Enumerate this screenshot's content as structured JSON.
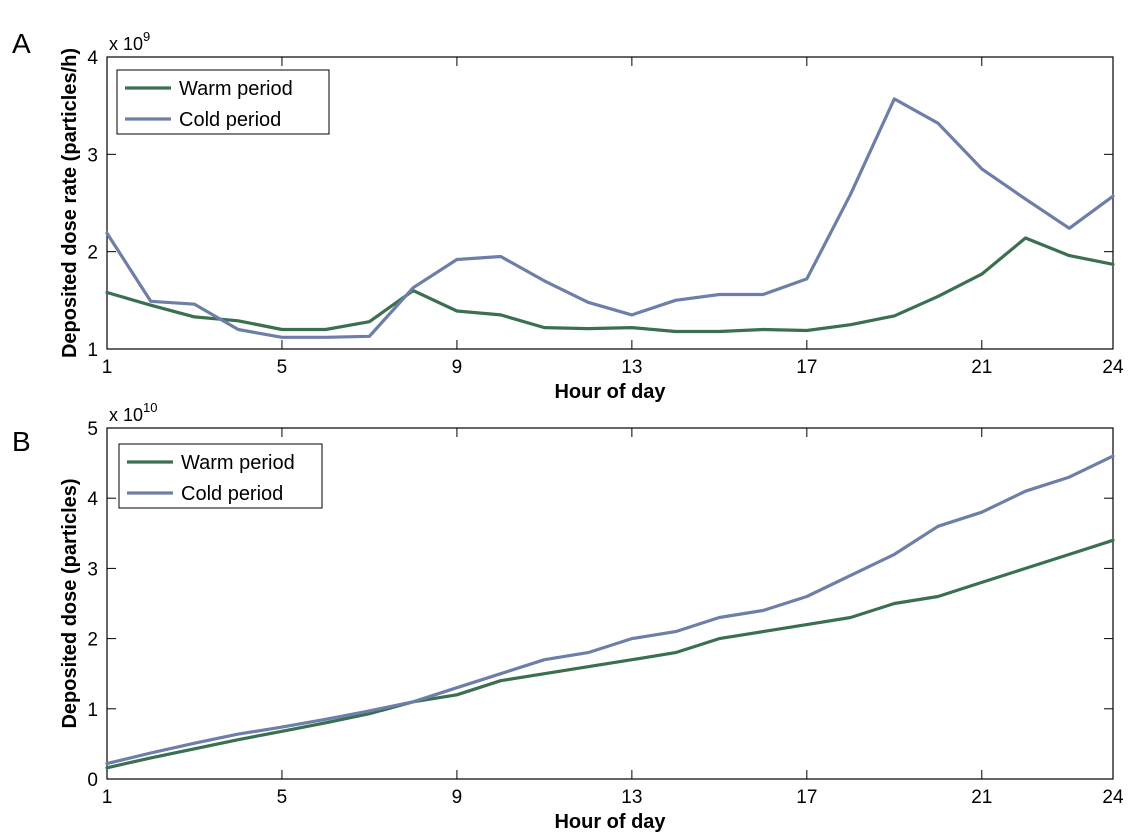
{
  "chart_data": [
    {
      "type": "line",
      "panel_label": "A",
      "exponent_prefix": "x 10",
      "exponent_power": "9",
      "xlabel": "Hour of day",
      "ylabel": "Deposited dose rate (particles/h)",
      "xlim": [
        1,
        24
      ],
      "ylim": [
        1,
        4
      ],
      "xticks": [
        1,
        5,
        9,
        13,
        17,
        21,
        24
      ],
      "yticks": [
        1,
        2,
        3,
        4
      ],
      "legend_position": "top-left",
      "grid": false,
      "x": [
        1,
        2,
        3,
        4,
        5,
        6,
        7,
        8,
        9,
        10,
        11,
        12,
        13,
        14,
        15,
        16,
        17,
        18,
        19,
        20,
        21,
        22,
        23,
        24
      ],
      "series": [
        {
          "name": "Warm period",
          "color": "#3a7050",
          "values": [
            1.58,
            1.45,
            1.33,
            1.29,
            1.2,
            1.2,
            1.28,
            1.6,
            1.39,
            1.35,
            1.22,
            1.21,
            1.22,
            1.18,
            1.18,
            1.2,
            1.19,
            1.25,
            1.34,
            1.54,
            1.77,
            2.14,
            1.96,
            1.87
          ]
        },
        {
          "name": "Cold period",
          "color": "#6d7fa8",
          "values": [
            2.19,
            1.49,
            1.46,
            1.2,
            1.12,
            1.12,
            1.13,
            1.63,
            1.92,
            1.95,
            1.7,
            1.48,
            1.35,
            1.5,
            1.56,
            1.56,
            1.72,
            2.59,
            3.57,
            3.32,
            2.85,
            2.54,
            2.24,
            2.57
          ]
        }
      ]
    },
    {
      "type": "line",
      "panel_label": "B",
      "exponent_prefix": "x 10",
      "exponent_power": "10",
      "xlabel": "Hour of day",
      "ylabel": "Deposited dose (particles)",
      "xlim": [
        1,
        24
      ],
      "ylim": [
        0,
        5
      ],
      "xticks": [
        1,
        5,
        9,
        13,
        17,
        21,
        24
      ],
      "yticks": [
        0,
        1,
        2,
        3,
        4,
        5
      ],
      "legend_position": "top-left",
      "grid": false,
      "x": [
        1,
        2,
        3,
        4,
        5,
        6,
        7,
        8,
        9,
        10,
        11,
        12,
        13,
        14,
        15,
        16,
        17,
        18,
        19,
        20,
        21,
        22,
        23,
        24
      ],
      "series": [
        {
          "name": "Warm period",
          "color": "#3a7050",
          "values": [
            0.16,
            0.3,
            0.43,
            0.56,
            0.68,
            0.8,
            0.93,
            1.1,
            1.2,
            1.4,
            1.5,
            1.6,
            1.7,
            1.8,
            2.0,
            2.1,
            2.2,
            2.3,
            2.5,
            2.6,
            2.8,
            3.0,
            3.2,
            3.4
          ]
        },
        {
          "name": "Cold period",
          "color": "#6d7fa8",
          "values": [
            0.22,
            0.37,
            0.51,
            0.64,
            0.74,
            0.85,
            0.97,
            1.1,
            1.3,
            1.5,
            1.7,
            1.8,
            2.0,
            2.1,
            2.3,
            2.4,
            2.6,
            2.9,
            3.2,
            3.6,
            3.8,
            4.1,
            4.3,
            4.6
          ]
        }
      ]
    }
  ]
}
